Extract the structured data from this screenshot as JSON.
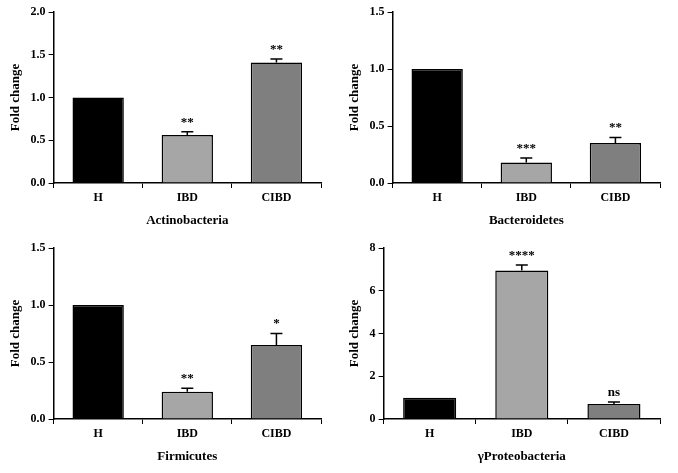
{
  "chart_data": [
    {
      "type": "bar",
      "x_label": "Actinobacteria",
      "y_label": "Fold change",
      "categories": [
        "H",
        "IBD",
        "CIBD"
      ],
      "values": [
        1.0,
        0.56,
        1.41
      ],
      "errors": [
        0,
        0.04,
        0.04
      ],
      "colors": [
        "#000000",
        "#a6a6a6",
        "#7f7f7f"
      ],
      "ylim": [
        0,
        2
      ],
      "yticks": [
        {
          "value": 0,
          "label": "0.0"
        },
        {
          "value": 0.5,
          "label": "0.5"
        },
        {
          "value": 1,
          "label": "1.0"
        },
        {
          "value": 1.5,
          "label": "1.5"
        },
        {
          "value": 2,
          "label": "2.0"
        }
      ],
      "annotations": [
        {
          "category": "IBD",
          "text": "**"
        },
        {
          "category": "CIBD",
          "text": "**"
        }
      ],
      "grid": false,
      "legend": false
    },
    {
      "type": "bar",
      "x_label": "Bacteroidetes",
      "y_label": "Fold change",
      "categories": [
        "H",
        "IBD",
        "CIBD"
      ],
      "values": [
        1.0,
        0.18,
        0.35
      ],
      "errors": [
        0,
        0.04,
        0.05
      ],
      "colors": [
        "#000000",
        "#a6a6a6",
        "#7f7f7f"
      ],
      "ylim": [
        0,
        1.5
      ],
      "yticks": [
        {
          "value": 0,
          "label": "0.0"
        },
        {
          "value": 0.5,
          "label": "0.5"
        },
        {
          "value": 1,
          "label": "1.0"
        },
        {
          "value": 1.5,
          "label": "1.5"
        }
      ],
      "annotations": [
        {
          "category": "IBD",
          "text": "***"
        },
        {
          "category": "CIBD",
          "text": "**"
        }
      ],
      "grid": false,
      "legend": false
    },
    {
      "type": "bar",
      "x_label": "Firmicutes",
      "y_label": "Fold change",
      "categories": [
        "H",
        "IBD",
        "CIBD"
      ],
      "values": [
        1.0,
        0.24,
        0.65
      ],
      "errors": [
        0,
        0.03,
        0.1
      ],
      "colors": [
        "#000000",
        "#a6a6a6",
        "#7f7f7f"
      ],
      "ylim": [
        0,
        1.5
      ],
      "yticks": [
        {
          "value": 0,
          "label": "0.0"
        },
        {
          "value": 0.5,
          "label": "0.5"
        },
        {
          "value": 1,
          "label": "1.0"
        },
        {
          "value": 1.5,
          "label": "1.5"
        }
      ],
      "annotations": [
        {
          "category": "IBD",
          "text": "**"
        },
        {
          "category": "CIBD",
          "text": "*"
        }
      ],
      "grid": false,
      "legend": false
    },
    {
      "type": "bar",
      "x_label": "γProteobacteria",
      "y_label": "Fold change",
      "categories": [
        "H",
        "IBD",
        "CIBD"
      ],
      "values": [
        1.0,
        6.95,
        0.7
      ],
      "errors": [
        0,
        0.25,
        0.1
      ],
      "colors": [
        "#000000",
        "#a6a6a6",
        "#7f7f7f"
      ],
      "ylim": [
        0,
        8
      ],
      "yticks": [
        0,
        2,
        4,
        6,
        8
      ],
      "annotations": [
        {
          "category": "IBD",
          "text": "****"
        },
        {
          "category": "CIBD",
          "text": "ns"
        }
      ],
      "grid": false,
      "legend": false
    }
  ]
}
